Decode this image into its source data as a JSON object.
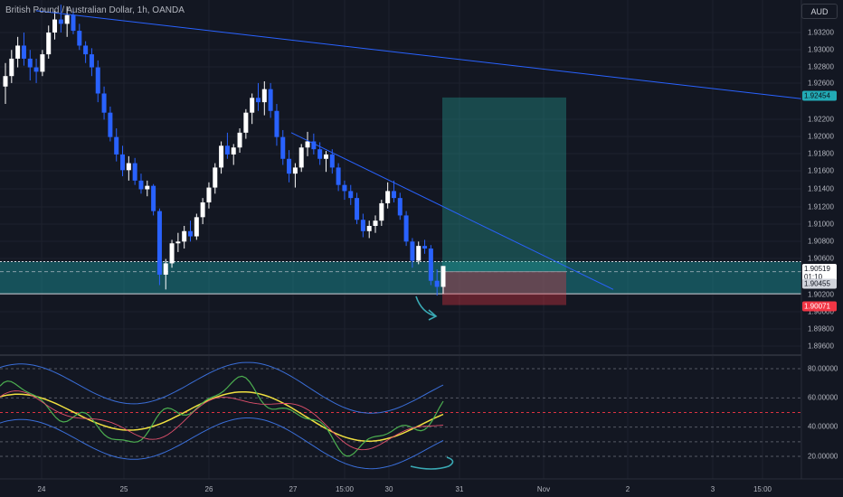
{
  "header": {
    "symbol": "British Pound / Australian Dollar, 1h, OANDA",
    "currency_button": "AUD"
  },
  "colors": {
    "background": "#131722",
    "bull": "#ffffff",
    "bear": "#2962ff",
    "zone": "#1a9aa0",
    "target": "#26a69a",
    "stop": "#f23645",
    "trendline": "#2962ff",
    "osc_fast": "#f0e040",
    "osc_slow_green": "#4caf50",
    "osc_red": "#e0506c",
    "osc_band": "#3a6ed8"
  },
  "price_axis": {
    "ticks": [
      "1.93200",
      "1.93000",
      "1.92800",
      "1.92600",
      "1.92200",
      "1.92000",
      "1.91800",
      "1.91600",
      "1.91400",
      "1.91200",
      "1.91000",
      "1.90800",
      "1.90600",
      "1.90200",
      "1.90000",
      "1.89800",
      "1.89600"
    ],
    "target_label": "1.92454",
    "current_price": "1.90519",
    "countdown": "01:10",
    "entry_label": "1.90455",
    "stop_label": "1.90071"
  },
  "osc_axis": {
    "ticks": [
      "80.00000",
      "60.00000",
      "40.00000",
      "20.00000"
    ]
  },
  "time_axis": {
    "ticks": [
      "24",
      "25",
      "26",
      "27",
      "15:00",
      "30",
      "31",
      "Nov",
      "2",
      "3",
      "15:00"
    ]
  },
  "chart_data": {
    "type": "candlestick",
    "symbol": "British Pound / Australian Dollar",
    "interval": "1h",
    "source": "OANDA",
    "ylim": [
      1.895,
      1.935
    ],
    "candles_ohlc_approx": [
      [
        1.9258,
        1.9285,
        1.9238,
        1.927
      ],
      [
        1.927,
        1.93,
        1.9262,
        1.929
      ],
      [
        1.929,
        1.9315,
        1.928,
        1.9305
      ],
      [
        1.9305,
        1.932,
        1.9282,
        1.929
      ],
      [
        1.929,
        1.93,
        1.9265,
        1.928
      ],
      [
        1.928,
        1.929,
        1.9262,
        1.9275
      ],
      [
        1.9275,
        1.93,
        1.927,
        1.9295
      ],
      [
        1.9295,
        1.9328,
        1.929,
        1.932
      ],
      [
        1.932,
        1.9345,
        1.9312,
        1.9335
      ],
      [
        1.9335,
        1.9352,
        1.932,
        1.933
      ],
      [
        1.933,
        1.935,
        1.9315,
        1.934
      ],
      [
        1.934,
        1.9348,
        1.9318,
        1.9322
      ],
      [
        1.9322,
        1.933,
        1.93,
        1.9305
      ],
      [
        1.9305,
        1.931,
        1.9285,
        1.9295
      ],
      [
        1.9295,
        1.9302,
        1.927,
        1.928
      ],
      [
        1.928,
        1.9288,
        1.924,
        1.925
      ],
      [
        1.925,
        1.9258,
        1.922,
        1.9228
      ],
      [
        1.9228,
        1.9235,
        1.9195,
        1.92
      ],
      [
        1.92,
        1.921,
        1.9172,
        1.918
      ],
      [
        1.918,
        1.919,
        1.9155,
        1.9162
      ],
      [
        1.9162,
        1.9178,
        1.915,
        1.917
      ],
      [
        1.917,
        1.9176,
        1.9145,
        1.915
      ],
      [
        1.915,
        1.9158,
        1.9135,
        1.914
      ],
      [
        1.914,
        1.915,
        1.9132,
        1.9144
      ],
      [
        1.9144,
        1.9146,
        1.911,
        1.9115
      ],
      [
        1.9115,
        1.9118,
        1.903,
        1.9042
      ],
      [
        1.9042,
        1.906,
        1.9025,
        1.9055
      ],
      [
        1.9055,
        1.9082,
        1.905,
        1.9078
      ],
      [
        1.9078,
        1.909,
        1.9068,
        1.908
      ],
      [
        1.908,
        1.9098,
        1.9072,
        1.9092
      ],
      [
        1.9092,
        1.9104,
        1.908,
        1.9086
      ],
      [
        1.9086,
        1.9112,
        1.9082,
        1.9108
      ],
      [
        1.9108,
        1.913,
        1.91,
        1.9125
      ],
      [
        1.9125,
        1.9148,
        1.9118,
        1.9142
      ],
      [
        1.9142,
        1.917,
        1.9135,
        1.9165
      ],
      [
        1.9165,
        1.9195,
        1.9158,
        1.919
      ],
      [
        1.919,
        1.9205,
        1.9175,
        1.918
      ],
      [
        1.918,
        1.9192,
        1.9168,
        1.9188
      ],
      [
        1.9188,
        1.921,
        1.9182,
        1.9205
      ],
      [
        1.9205,
        1.9232,
        1.9198,
        1.9228
      ],
      [
        1.9228,
        1.925,
        1.9215,
        1.9245
      ],
      [
        1.9245,
        1.9262,
        1.923,
        1.924
      ],
      [
        1.924,
        1.9264,
        1.9225,
        1.9255
      ],
      [
        1.9255,
        1.9262,
        1.9222,
        1.923
      ],
      [
        1.923,
        1.9238,
        1.919,
        1.92
      ],
      [
        1.92,
        1.9208,
        1.9168,
        1.9175
      ],
      [
        1.9175,
        1.9185,
        1.9148,
        1.9158
      ],
      [
        1.9158,
        1.917,
        1.9142,
        1.9165
      ],
      [
        1.9165,
        1.9192,
        1.916,
        1.9188
      ],
      [
        1.9188,
        1.9206,
        1.9178,
        1.9195
      ],
      [
        1.9195,
        1.9204,
        1.918,
        1.9186
      ],
      [
        1.9186,
        1.9194,
        1.9168,
        1.9175
      ],
      [
        1.9175,
        1.9184,
        1.916,
        1.918
      ],
      [
        1.918,
        1.9186,
        1.9158,
        1.9165
      ],
      [
        1.9165,
        1.917,
        1.9138,
        1.9145
      ],
      [
        1.9145,
        1.915,
        1.9128,
        1.9138
      ],
      [
        1.9138,
        1.9145,
        1.9122,
        1.913
      ],
      [
        1.913,
        1.9136,
        1.91,
        1.9105
      ],
      [
        1.9105,
        1.9112,
        1.9085,
        1.9092
      ],
      [
        1.9092,
        1.9104,
        1.9084,
        1.9098
      ],
      [
        1.9098,
        1.911,
        1.909,
        1.9104
      ],
      [
        1.9104,
        1.9128,
        1.9098,
        1.9124
      ],
      [
        1.9124,
        1.9148,
        1.9118,
        1.9138
      ],
      [
        1.9138,
        1.915,
        1.9125,
        1.913
      ],
      [
        1.913,
        1.9136,
        1.9105,
        1.911
      ],
      [
        1.911,
        1.9115,
        1.9075,
        1.908
      ],
      [
        1.908,
        1.9084,
        1.905,
        1.9058
      ],
      [
        1.9058,
        1.908,
        1.9054,
        1.9075
      ],
      [
        1.9075,
        1.9082,
        1.9066,
        1.9072
      ],
      [
        1.9072,
        1.9076,
        1.903,
        1.9035
      ],
      [
        1.9035,
        1.9048,
        1.9018,
        1.9028
      ],
      [
        1.9028,
        1.9052,
        1.902,
        1.9052
      ]
    ],
    "trendlines": [
      {
        "from": [
          "24 early",
          1.9345
        ],
        "to": [
          "Nov 1 late",
          1.9244
        ]
      },
      {
        "from": [
          "27",
          1.9205
        ],
        "to": [
          "31",
          1.9025
        ]
      }
    ],
    "long_position": {
      "entry": 1.90455,
      "target": 1.92454,
      "stop": 1.90071
    },
    "support_zone": [
      1.902,
      1.9057
    ],
    "indicator": {
      "type": "oscillator with bands",
      "ylim": [
        0,
        90
      ],
      "levels": [
        80,
        60,
        40,
        20
      ]
    }
  }
}
